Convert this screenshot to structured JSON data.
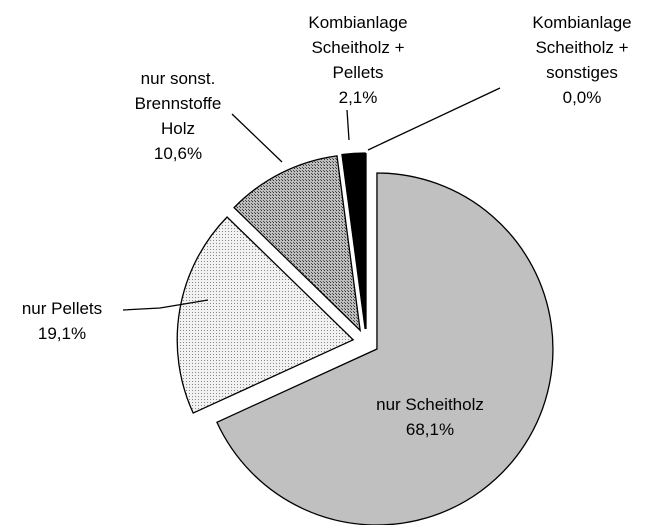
{
  "chart_data": {
    "type": "pie",
    "categories": [
      "nur Scheitholz",
      "nur Pellets",
      "nur sonst.\nBrennstoffe\nHolz",
      "Kombianlage\nScheitholz +\nPellets",
      "Kombianlage\nScheitholz +\nsonstiges"
    ],
    "values": [
      68.1,
      19.1,
      10.6,
      2.1,
      0.0
    ],
    "value_labels": [
      "68,1%",
      "19,1%",
      "10,6%",
      "2,1%",
      "0,0%"
    ],
    "colors": [
      "#c0c0c0",
      "#e6e6e6",
      "#a6a6a6",
      "#000000",
      "#000000"
    ]
  }
}
